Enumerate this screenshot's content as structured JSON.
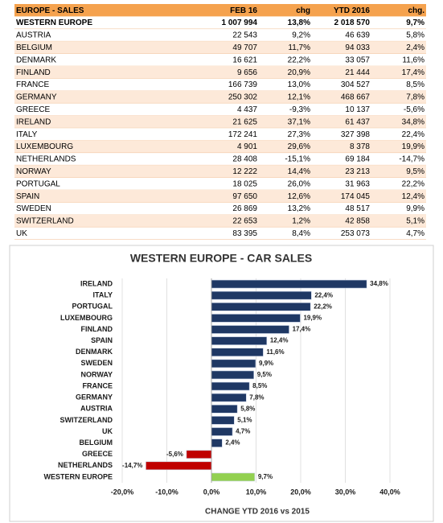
{
  "table": {
    "header": [
      "EUROPE - SALES",
      "FEB 16",
      "chg",
      "YTD 2016",
      "chg."
    ],
    "rows": [
      [
        "WESTERN EUROPE",
        "1 007 994",
        "13,8%",
        "2 018 570",
        "9,7%"
      ],
      [
        "AUSTRIA",
        "22 543",
        "9,2%",
        "46 639",
        "5,8%"
      ],
      [
        "BELGIUM",
        "49 707",
        "11,7%",
        "94 033",
        "2,4%"
      ],
      [
        "DENMARK",
        "16 621",
        "22,2%",
        "33 057",
        "11,6%"
      ],
      [
        "FINLAND",
        "9 656",
        "20,9%",
        "21 444",
        "17,4%"
      ],
      [
        "FRANCE",
        "166 739",
        "13,0%",
        "304 527",
        "8,5%"
      ],
      [
        "GERMANY",
        "250 302",
        "12,1%",
        "468 667",
        "7,8%"
      ],
      [
        "GREECE",
        "4 437",
        "-9,3%",
        "10 137",
        "-5,6%"
      ],
      [
        "IRELAND",
        "21 625",
        "37,1%",
        "61 437",
        "34,8%"
      ],
      [
        "ITALY",
        "172 241",
        "27,3%",
        "327 398",
        "22,4%"
      ],
      [
        "LUXEMBOURG",
        "4 901",
        "29,6%",
        "8 378",
        "19,9%"
      ],
      [
        "NETHERLANDS",
        "28 408",
        "-15,1%",
        "69 184",
        "-14,7%"
      ],
      [
        "NORWAY",
        "12 222",
        "14,4%",
        "23 213",
        "9,5%"
      ],
      [
        "PORTUGAL",
        "18 025",
        "26,0%",
        "31 963",
        "22,2%"
      ],
      [
        "SPAIN",
        "97 650",
        "12,6%",
        "174 045",
        "12,4%"
      ],
      [
        "SWEDEN",
        "26 869",
        "13,2%",
        "48 517",
        "9,9%"
      ],
      [
        "SWITZERLAND",
        "22 653",
        "1,2%",
        "42 858",
        "5,1%"
      ],
      [
        "UK",
        "83 395",
        "8,4%",
        "253 073",
        "4,7%"
      ]
    ]
  },
  "chart_data": {
    "type": "bar",
    "orientation": "horizontal",
    "title": "WESTERN EUROPE - CAR SALES",
    "x_label": "CHANGE YTD 2016 vs 2015",
    "categories": [
      "IRELAND",
      "ITALY",
      "PORTUGAL",
      "LUXEMBOURG",
      "FINLAND",
      "SPAIN",
      "DENMARK",
      "SWEDEN",
      "NORWAY",
      "FRANCE",
      "GERMANY",
      "AUSTRIA",
      "SWITZERLAND",
      "UK",
      "BELGIUM",
      "GREECE",
      "NETHERLANDS",
      "WESTERN EUROPE"
    ],
    "values": [
      34.8,
      22.4,
      22.2,
      19.9,
      17.4,
      12.4,
      11.6,
      9.9,
      9.5,
      8.5,
      7.8,
      5.8,
      5.1,
      4.7,
      2.4,
      -5.6,
      -14.7,
      9.7
    ],
    "value_labels": [
      "34,8%",
      "22,4%",
      "22,2%",
      "19,9%",
      "17,4%",
      "12,4%",
      "11,6%",
      "9,9%",
      "9,5%",
      "8,5%",
      "7,8%",
      "5,8%",
      "5,1%",
      "4,7%",
      "2,4%",
      "-5,6%",
      "-14,7%",
      "9,7%"
    ],
    "colors": [
      "#1f3864",
      "#1f3864",
      "#1f3864",
      "#1f3864",
      "#1f3864",
      "#1f3864",
      "#1f3864",
      "#1f3864",
      "#1f3864",
      "#1f3864",
      "#1f3864",
      "#1f3864",
      "#1f3864",
      "#1f3864",
      "#1f3864",
      "#c00000",
      "#c00000",
      "#92d050"
    ],
    "xlim": [
      -20,
      40
    ],
    "xticks": [
      {
        "value": -20,
        "label": "-20,0%"
      },
      {
        "value": -10,
        "label": "-10,0%"
      },
      {
        "value": 0,
        "label": "0,0%"
      },
      {
        "value": 10,
        "label": "10,0%"
      },
      {
        "value": 20,
        "label": "20,0%"
      },
      {
        "value": 30,
        "label": "30,0%"
      },
      {
        "value": 40,
        "label": "40,0%"
      }
    ],
    "grid": true
  }
}
